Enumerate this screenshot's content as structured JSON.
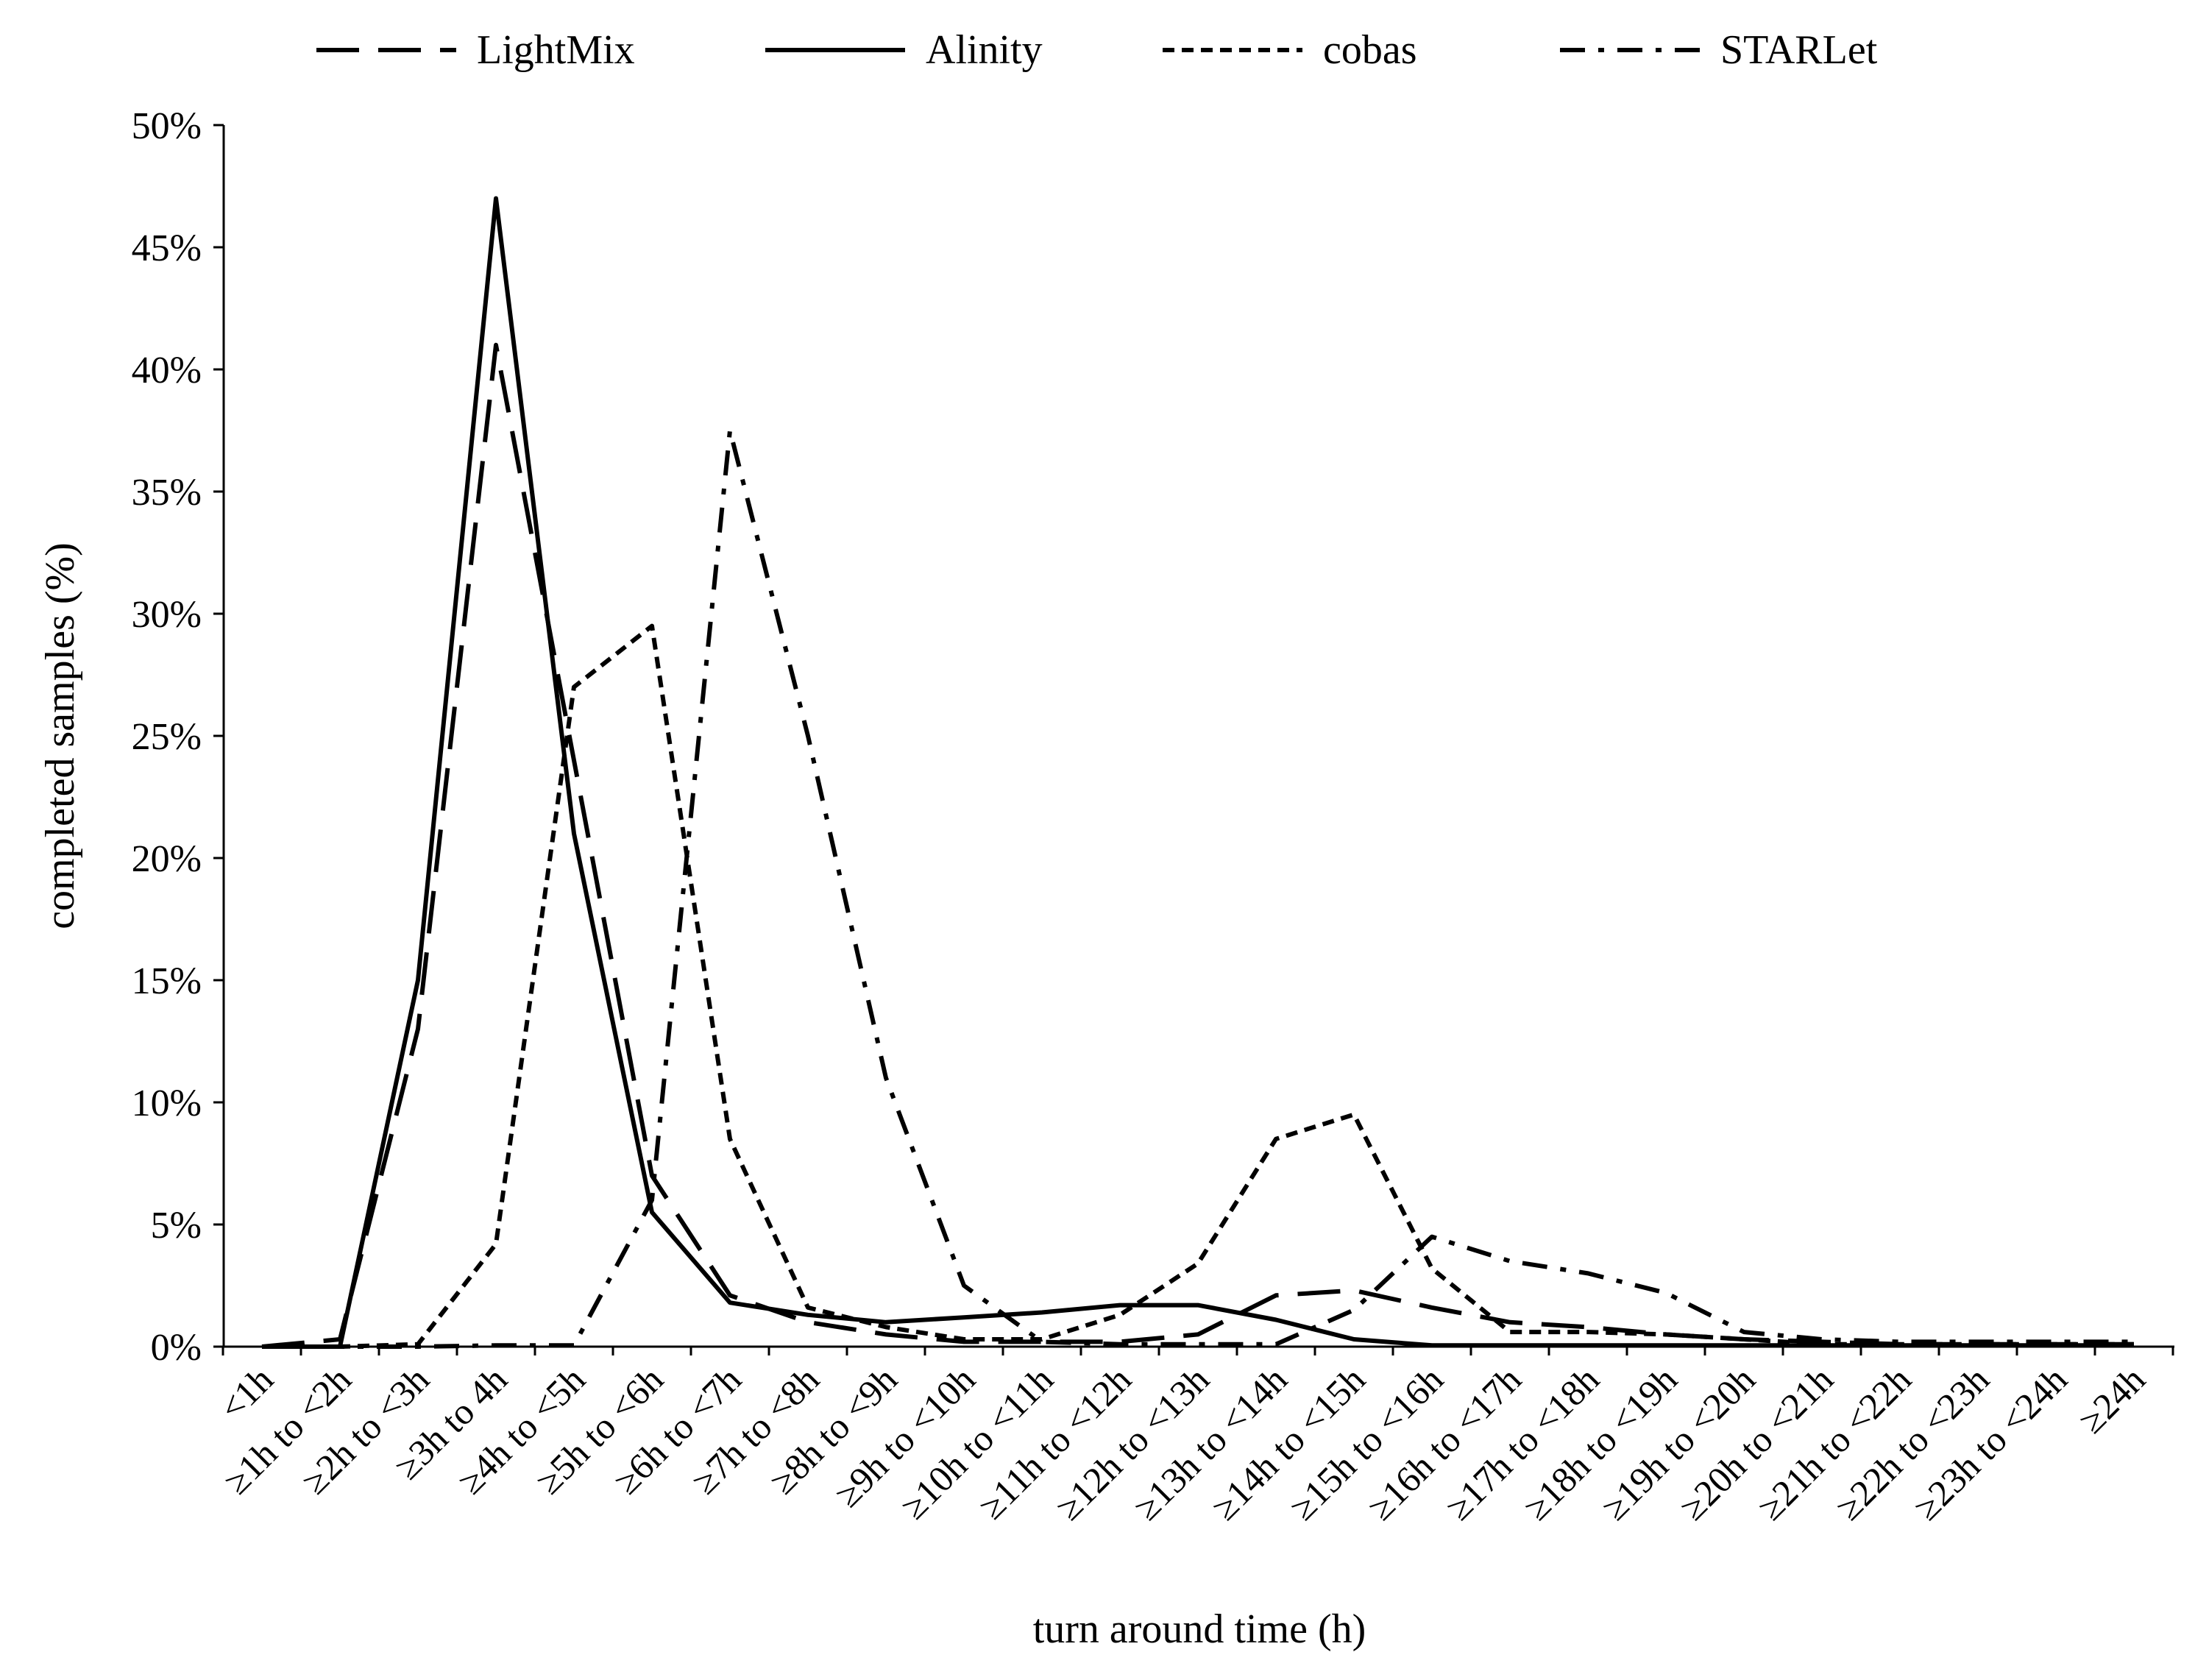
{
  "chart_data": {
    "type": "line",
    "title": "",
    "xlabel": "turn around time (h)",
    "ylabel": "completed samples (%)",
    "ylim": [
      0,
      50
    ],
    "ytick_step": 5,
    "ytick_suffix": "%",
    "grid": false,
    "legend_position": "top",
    "categories": [
      "<1h",
      "≥1h to <2h",
      "≥2h to <3h",
      "≥3h to 4h",
      "≥4h to <5h",
      "≥5h to <6h",
      "≥6h to <7h",
      "≥7h to <8h",
      "≥8h to <9h",
      "≥9h to <10h",
      "≥10h to <11h",
      "≥11h to <12h",
      "≥12h to <13h",
      "≥13h to <14h",
      "≥14h to <15h",
      "≥15h to <16h",
      "≥16h to <17h",
      "≥17h to <18h",
      "≥18h to <19h",
      "≥19h to <20h",
      "≥20h to <21h",
      "≥21h to <22h",
      "≥22h to <23h",
      "≥23h to <24h",
      "≥24h"
    ],
    "series": [
      {
        "name": "LightMix",
        "style": "long-dash",
        "values": [
          0,
          0.3,
          13.0,
          41.0,
          24.0,
          7.0,
          2.1,
          1.0,
          0.5,
          0.2,
          0.2,
          0.2,
          0.5,
          2.1,
          2.3,
          1.6,
          1.0,
          0.8,
          0.5,
          0.3,
          0.2,
          0.1,
          0.1,
          0.1,
          0.1
        ]
      },
      {
        "name": "Alinity",
        "style": "solid",
        "values": [
          0,
          0,
          15.0,
          47.0,
          21.0,
          5.5,
          1.8,
          1.3,
          1.0,
          1.2,
          1.4,
          1.7,
          1.7,
          1.1,
          0.3,
          0.05,
          0.05,
          0.05,
          0.05,
          0.05,
          0.05,
          0.05,
          0.05,
          0.05,
          0.05
        ]
      },
      {
        "name": "cobas",
        "style": "short-dash",
        "values": [
          0,
          0,
          0.1,
          4.2,
          27.0,
          29.5,
          8.5,
          1.6,
          0.8,
          0.3,
          0.3,
          1.3,
          3.4,
          8.5,
          9.5,
          3.2,
          0.6,
          0.6,
          0.5,
          0.3,
          0.1,
          0.1,
          0.1,
          0.1,
          0.1
        ]
      },
      {
        "name": "STARLet",
        "style": "dash-dot",
        "values": [
          0,
          0,
          0,
          0.05,
          0.05,
          6.0,
          37.5,
          25.0,
          11.0,
          2.5,
          0.2,
          0.1,
          0.1,
          0.1,
          1.5,
          4.5,
          3.5,
          3.0,
          2.2,
          0.6,
          0.3,
          0.2,
          0.2,
          0.2,
          0.2
        ]
      }
    ]
  }
}
